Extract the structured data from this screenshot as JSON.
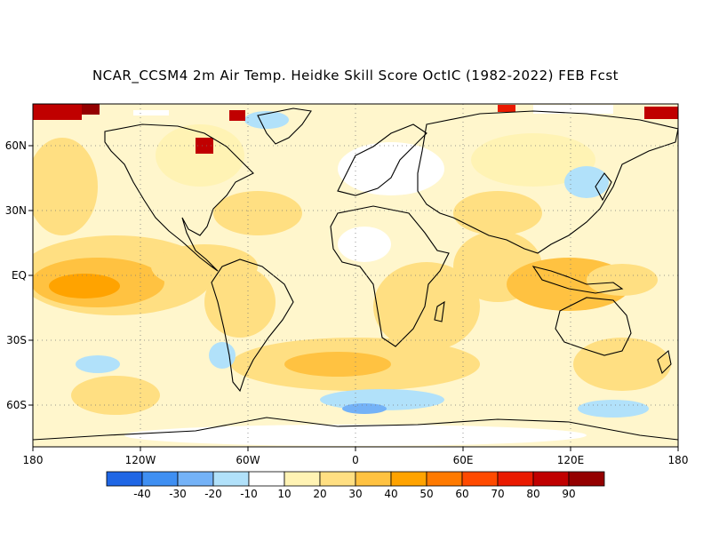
{
  "title": "NCAR_CCSM4 2m Air Temp. Heidke Skill Score OctIC (1982-2022) FEB Fcst",
  "map": {
    "lon_ticks": [
      "180",
      "120W",
      "60W",
      "0",
      "60E",
      "120E",
      "180"
    ],
    "lat_ticks": [
      "60N",
      "30N",
      "EQ",
      "30S",
      "60S"
    ]
  },
  "colorbar": {
    "colors": [
      "#1f66e5",
      "#3f8ff2",
      "#74b2f7",
      "#b1e1fa",
      "#ffffff",
      "#fff3b4",
      "#ffdf82",
      "#ffc241",
      "#ffa300",
      "#ff7a00",
      "#ff4a00",
      "#ea1a00",
      "#c00000",
      "#940000"
    ],
    "labels": [
      "-40",
      "-30",
      "-20",
      "-10",
      "10",
      "20",
      "30",
      "40",
      "50",
      "60",
      "70",
      "80",
      "90"
    ]
  }
}
